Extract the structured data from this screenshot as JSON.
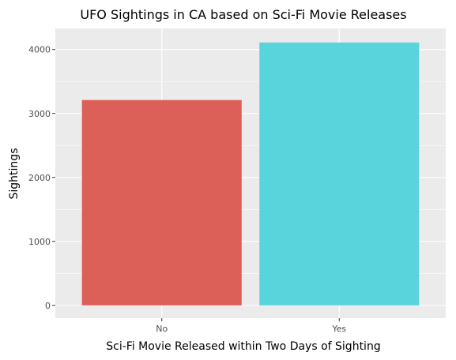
{
  "chart_data": {
    "type": "bar",
    "title": "UFO Sightings in CA based on Sci-Fi Movie Releases",
    "xlabel": "Sci-Fi Movie Released within Two Days of Sighting",
    "ylabel": "Sightings",
    "categories": [
      "No",
      "Yes"
    ],
    "values": [
      3210,
      4110
    ],
    "colors": [
      "#DC6057",
      "#59D3DC"
    ],
    "ylim": [
      -200,
      4330
    ],
    "yticks": [
      0,
      1000,
      2000,
      3000,
      4000
    ],
    "ytick_labels": [
      "0",
      "1000",
      "2000",
      "3000",
      "4000"
    ],
    "grid": true,
    "panel_background": "#EBEBEB",
    "grid_color": "#FFFFFF",
    "legend": "none"
  }
}
